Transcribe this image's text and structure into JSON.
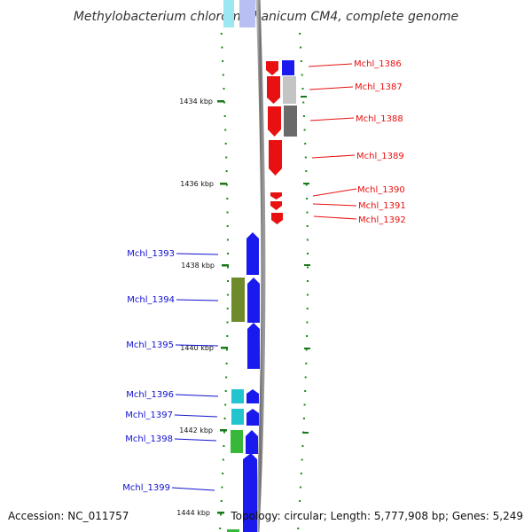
{
  "title": "Methylobacterium chloromethanicum CM4, complete genome",
  "footer": {
    "accession": "Accession: NC_011757",
    "topology": "Topology: circular; Length: 5,777,908 bp; Genes: 5,249"
  },
  "scale_labels": [
    "1434 kbp",
    "1436 kbp",
    "1438 kbp",
    "1440 kbp",
    "1442 kbp",
    "1444 kbp"
  ],
  "strand_colors": {
    "top": "#e81010",
    "bottom": "#1010d0"
  },
  "genes_top": [
    {
      "id": "Mchl_1386",
      "color": "#e81010"
    },
    {
      "id": "Mchl_1387",
      "color": "#e81010"
    },
    {
      "id": "Mchl_1388",
      "color": "#e81010"
    },
    {
      "id": "Mchl_1389",
      "color": "#e81010"
    },
    {
      "id": "Mchl_1390",
      "color": "#e81010"
    },
    {
      "id": "Mchl_1391",
      "color": "#e81010"
    },
    {
      "id": "Mchl_1392",
      "color": "#e81010"
    }
  ],
  "genes_bottom": [
    {
      "id": "Mchl_1393",
      "color": "#1010d0"
    },
    {
      "id": "Mchl_1394",
      "color": "#1010d0"
    },
    {
      "id": "Mchl_1395",
      "color": "#1010d0"
    },
    {
      "id": "Mchl_1396",
      "color": "#1010d0"
    },
    {
      "id": "Mchl_1397",
      "color": "#1010d0"
    },
    {
      "id": "Mchl_1398",
      "color": "#1010d0"
    },
    {
      "id": "Mchl_1399",
      "color": "#1010d0"
    }
  ],
  "feature_colors": {
    "blue": "#1a1aee",
    "light_gray": "#c4c4c4",
    "dark_gray": "#6a6a6a",
    "olive": "#6f8a2a",
    "cyan": "#22c4d0",
    "green": "#38b838"
  }
}
